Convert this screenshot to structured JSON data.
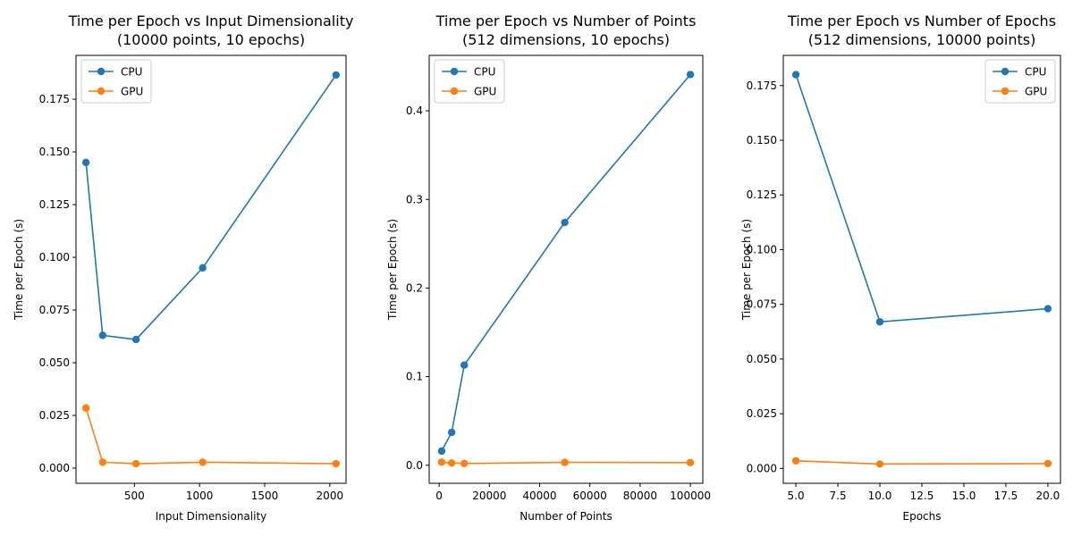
{
  "colors": {
    "cpu": "#1f77b4",
    "gpu": "#ff7f0e",
    "axis": "#000000",
    "legend_border": "#cccccc"
  },
  "chart_data": [
    {
      "type": "line",
      "title": "Time per Epoch vs Input Dimensionality",
      "subtitle": "(10000 points, 10 epochs)",
      "xlabel": "Input Dimensionality",
      "ylabel": "Time per Epoch (s)",
      "xlim": [
        51.2,
        2124.8
      ],
      "ylim": [
        -0.0072,
        0.1958
      ],
      "xticks": [
        500,
        1000,
        1500,
        2000
      ],
      "xticklabels": [
        "500",
        "1000",
        "1500",
        "2000"
      ],
      "yticks": [
        0,
        0.025,
        0.05,
        0.075,
        0.1,
        0.125,
        0.15,
        0.175
      ],
      "yticklabels": [
        "0.000",
        "0.025",
        "0.050",
        "0.075",
        "0.100",
        "0.125",
        "0.150",
        "0.175"
      ],
      "grid": false,
      "legend_position": "upper-left",
      "x": [
        128,
        256,
        512,
        1024,
        2048
      ],
      "series": [
        {
          "name": "CPU",
          "values": [
            0.145,
            0.063,
            0.061,
            0.095,
            0.1865
          ]
        },
        {
          "name": "GPU",
          "values": [
            0.0285,
            0.0028,
            0.0021,
            0.0028,
            0.0021
          ]
        }
      ]
    },
    {
      "type": "line",
      "title": "Time per Epoch vs Number of Points",
      "subtitle": "(512 dimensions, 10 epochs)",
      "xlabel": "Number of Points",
      "ylabel": "Time per Epoch (s)",
      "xlim": [
        -3950,
        104950
      ],
      "ylim": [
        -0.0204,
        0.4626
      ],
      "xticks": [
        0,
        20000,
        40000,
        60000,
        80000,
        100000
      ],
      "xticklabels": [
        "0",
        "20000",
        "40000",
        "60000",
        "80000",
        "100000"
      ],
      "yticks": [
        0,
        0.1,
        0.2,
        0.3,
        0.4
      ],
      "yticklabels": [
        "0.0",
        "0.1",
        "0.2",
        "0.3",
        "0.4"
      ],
      "grid": false,
      "legend_position": "upper-left",
      "x": [
        1000,
        5000,
        10000,
        50000,
        100000
      ],
      "series": [
        {
          "name": "CPU",
          "values": [
            0.016,
            0.037,
            0.113,
            0.274,
            0.441
          ]
        },
        {
          "name": "GPU",
          "values": [
            0.0035,
            0.0025,
            0.002,
            0.0032,
            0.003
          ]
        }
      ]
    },
    {
      "type": "line",
      "title": "Time per Epoch vs Number of Epochs",
      "subtitle": "(512 dimensions, 10000 points)",
      "xlabel": "Epochs",
      "ylabel": "Time per Epoch (s)",
      "xlim": [
        4.25,
        20.75
      ],
      "ylim": [
        -0.0068,
        0.1888
      ],
      "xticks": [
        5,
        7.5,
        10,
        12.5,
        15,
        17.5,
        20
      ],
      "xticklabels": [
        "5.0",
        "7.5",
        "10.0",
        "12.5",
        "15.0",
        "17.5",
        "20.0"
      ],
      "yticks": [
        0,
        0.025,
        0.05,
        0.075,
        0.1,
        0.125,
        0.15,
        0.175
      ],
      "yticklabels": [
        "0.000",
        "0.025",
        "0.050",
        "0.075",
        "0.100",
        "0.125",
        "0.150",
        "0.175"
      ],
      "grid": false,
      "legend_position": "upper-right",
      "x": [
        5,
        10,
        20
      ],
      "series": [
        {
          "name": "CPU",
          "values": [
            0.18,
            0.067,
            0.073
          ]
        },
        {
          "name": "GPU",
          "values": [
            0.0035,
            0.002,
            0.0022
          ]
        }
      ]
    }
  ]
}
